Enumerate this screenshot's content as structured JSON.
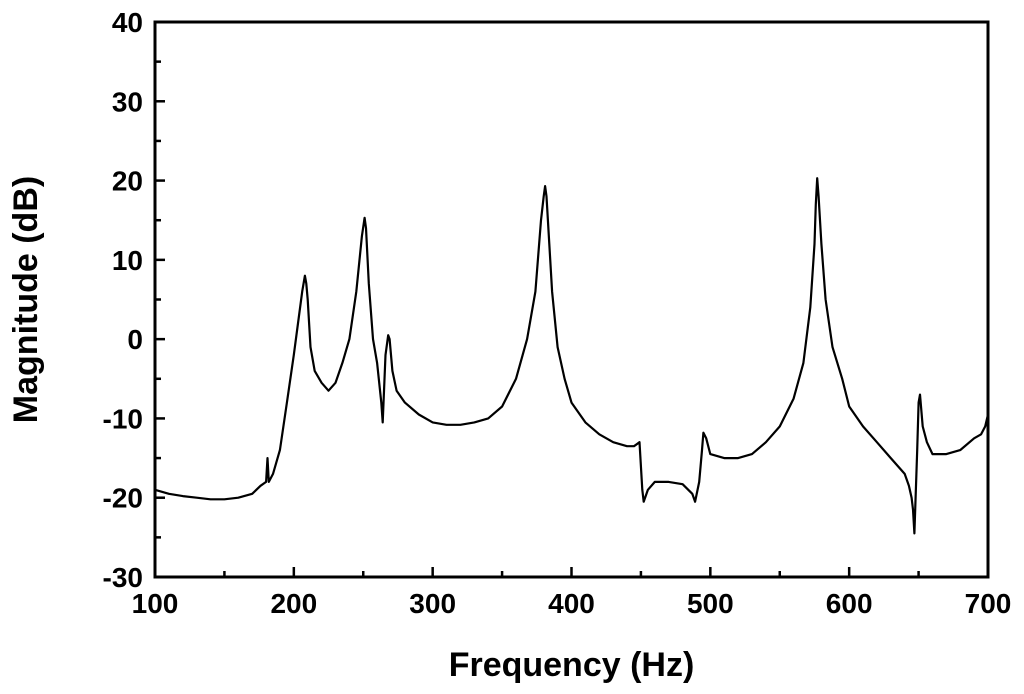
{
  "chart_data": {
    "type": "line",
    "title": "",
    "xlabel": "Frequency (Hz)",
    "ylabel": "Magnitude (dB)",
    "xlim": [
      100,
      700
    ],
    "ylim": [
      -30,
      40
    ],
    "x_ticks": [
      100,
      200,
      300,
      400,
      500,
      600,
      700
    ],
    "y_ticks": [
      -30,
      -20,
      -10,
      0,
      10,
      20,
      30,
      40
    ],
    "x_tick_labels": [
      "100",
      "200",
      "300",
      "400",
      "500",
      "600",
      "700"
    ],
    "y_tick_labels": [
      "-30",
      "-20",
      "-10",
      "0",
      "10",
      "20",
      "30",
      "40"
    ],
    "grid": false,
    "legend": "none",
    "line_color": "#000000",
    "series": [
      {
        "x": [
          100,
          110,
          120,
          130,
          140,
          150,
          160,
          170,
          176,
          180,
          181,
          182,
          185,
          190,
          195,
          200,
          203,
          206,
          208,
          209,
          210,
          212,
          215,
          220,
          225,
          230,
          235,
          240,
          245,
          249,
          251,
          252,
          254,
          257,
          260,
          263,
          264,
          266,
          268,
          269,
          271,
          274,
          280,
          290,
          300,
          310,
          320,
          330,
          340,
          350,
          360,
          368,
          374,
          378,
          380,
          381,
          382,
          384,
          386,
          390,
          395,
          400,
          410,
          420,
          430,
          440,
          445,
          449,
          451,
          452,
          455,
          460,
          470,
          480,
          487,
          489,
          492,
          494,
          495,
          497,
          500,
          510,
          520,
          530,
          540,
          550,
          560,
          567,
          572,
          575,
          576,
          577,
          578,
          580,
          583,
          588,
          595,
          600,
          610,
          620,
          630,
          640,
          643,
          645,
          646,
          647,
          649,
          650,
          651,
          653,
          656,
          660,
          670,
          680,
          690,
          695,
          698,
          700
        ],
        "y": [
          -19,
          -19.5,
          -19.8,
          -20,
          -20.2,
          -20.2,
          -20,
          -19.5,
          -18.5,
          -18,
          -15,
          -18,
          -17,
          -14,
          -8,
          -2,
          2,
          6,
          8,
          7,
          5,
          -1,
          -4,
          -5.5,
          -6.5,
          -5.5,
          -3,
          0,
          6,
          13,
          15.3,
          14,
          7,
          0,
          -3,
          -8,
          -10.5,
          -2,
          0.5,
          0,
          -4,
          -6.5,
          -8,
          -9.5,
          -10.5,
          -10.8,
          -10.8,
          -10.5,
          -10,
          -8.5,
          -5,
          0,
          6,
          15,
          18,
          19.3,
          18,
          12,
          6,
          -1,
          -5,
          -8,
          -10.5,
          -12,
          -13,
          -13.5,
          -13.5,
          -13,
          -19,
          -20.5,
          -19,
          -18,
          -18,
          -18.3,
          -19.5,
          -20.5,
          -18,
          -14,
          -11.8,
          -12.5,
          -14.5,
          -15,
          -15,
          -14.5,
          -13,
          -11,
          -7.5,
          -3,
          4,
          12,
          17,
          20.3,
          18,
          12,
          5,
          -1,
          -5,
          -8.5,
          -11,
          -13,
          -15,
          -17,
          -18.5,
          -20,
          -21.5,
          -24.5,
          -14,
          -8,
          -7,
          -11,
          -13,
          -14.5,
          -14.5,
          -14,
          -12.5,
          -12,
          -11,
          -9.5
        ]
      }
    ]
  }
}
